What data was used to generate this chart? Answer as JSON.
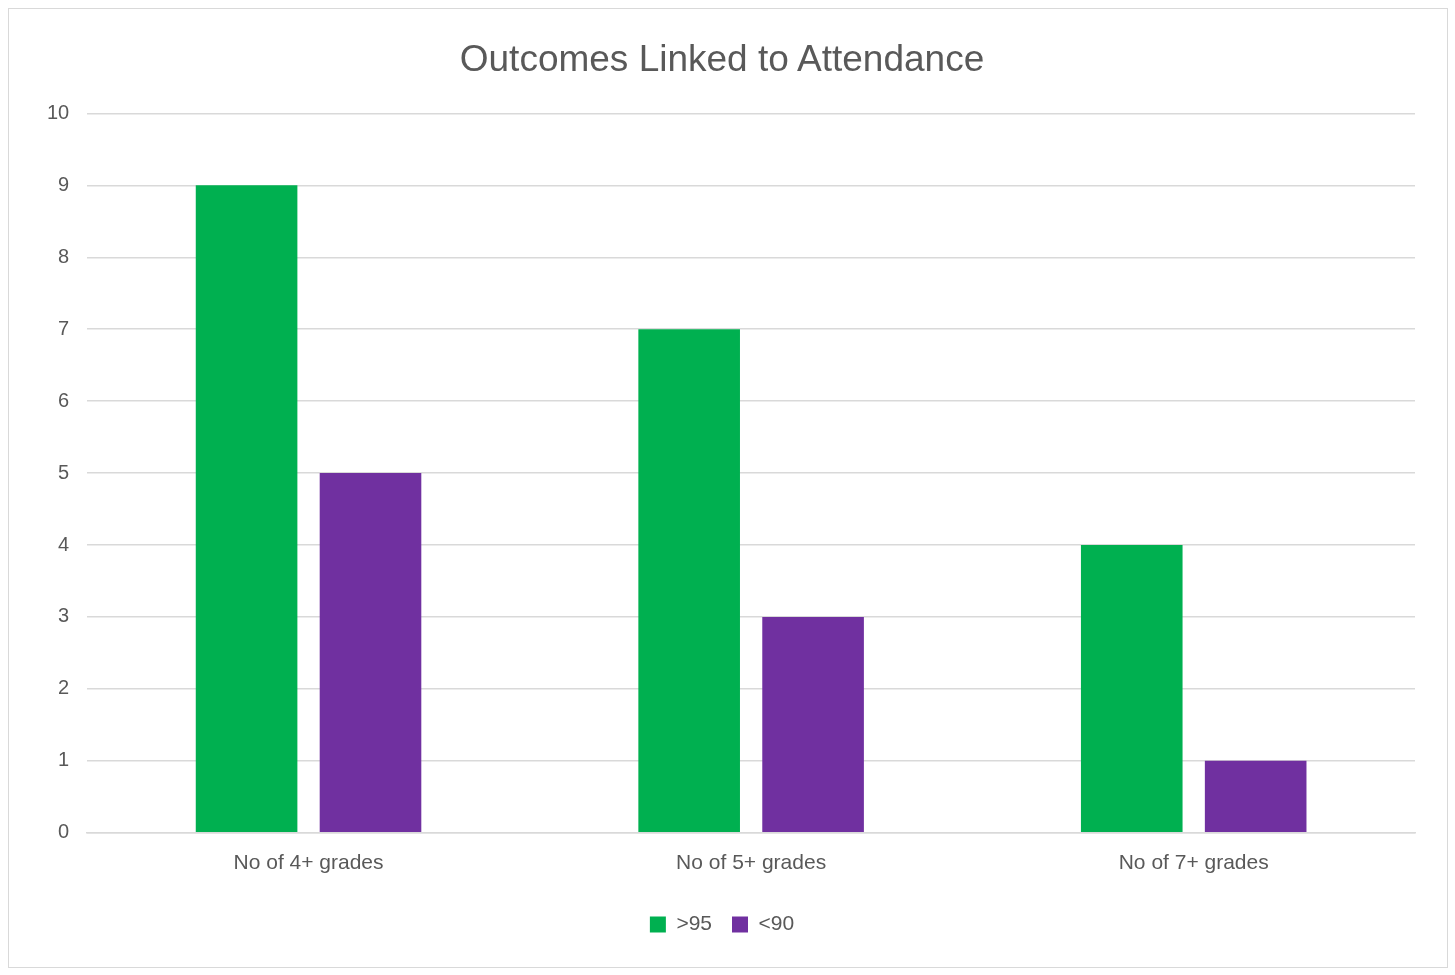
{
  "chart_data": {
    "type": "bar",
    "title": "Outcomes Linked to Attendance",
    "categories": [
      "No of 4+ grades",
      "No of 5+ grades",
      "No of 7+ grades"
    ],
    "series": [
      {
        "name": ">95",
        "color": "#00b050",
        "values": [
          9,
          7,
          4
        ]
      },
      {
        "name": "<90",
        "color": "#7030a0",
        "values": [
          5,
          3,
          1
        ]
      }
    ],
    "ylim": [
      0,
      10
    ],
    "yticks": [
      0,
      1,
      2,
      3,
      4,
      5,
      6,
      7,
      8,
      9,
      10
    ],
    "grid": "y",
    "legend": "bottom"
  }
}
